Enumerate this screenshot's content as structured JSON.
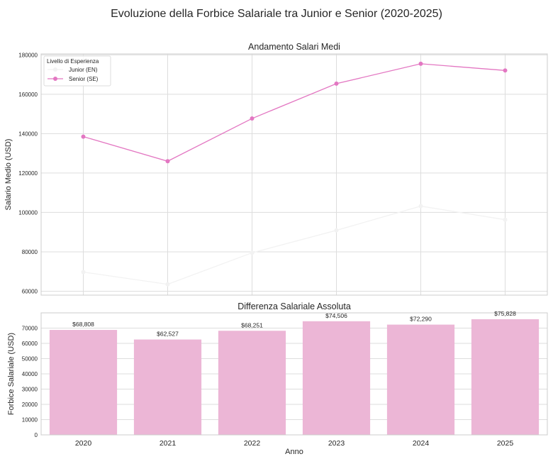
{
  "figure": {
    "suptitle": "Evoluzione della Forbice Salariale tra Junior e Senior (2020-2025)"
  },
  "chart_data": [
    {
      "type": "line",
      "title": "Andamento Salari Medi",
      "xlabel": "",
      "ylabel": "Salario Medio (USD)",
      "x": [
        2020,
        2021,
        2022,
        2023,
        2024,
        2025
      ],
      "xlim": [
        2019.5,
        2025.5
      ],
      "ylim": [
        58000,
        180500
      ],
      "yticks": [
        60000,
        80000,
        100000,
        120000,
        140000,
        160000,
        180000
      ],
      "grid": true,
      "legend": {
        "title": "Livello di Esperienza",
        "placement": "top-left"
      },
      "series": [
        {
          "name": "Junior (EN)",
          "color": "#f2f2f2",
          "values": [
            69700,
            63500,
            79500,
            90900,
            103200,
            96300
          ]
        },
        {
          "name": "Senior (SE)",
          "color": "#e377c2",
          "values": [
            138500,
            126000,
            147700,
            165400,
            175500,
            172100
          ]
        }
      ]
    },
    {
      "type": "bar",
      "title": "Differenza Salariale Assoluta",
      "xlabel": "Anno",
      "ylabel": "Forbice Salariale (USD)",
      "categories": [
        "2020",
        "2021",
        "2022",
        "2023",
        "2024",
        "2025"
      ],
      "values": [
        68808,
        62527,
        68251,
        74506,
        72290,
        75828
      ],
      "data_labels": [
        "$68,808",
        "$62,527",
        "$68,251",
        "$74,506",
        "$72,290",
        "$75,828"
      ],
      "ylim": [
        0,
        80000
      ],
      "yticks": [
        0,
        10000,
        20000,
        30000,
        40000,
        50000,
        60000,
        70000
      ],
      "color": "#ecb6d6",
      "grid": true
    }
  ]
}
